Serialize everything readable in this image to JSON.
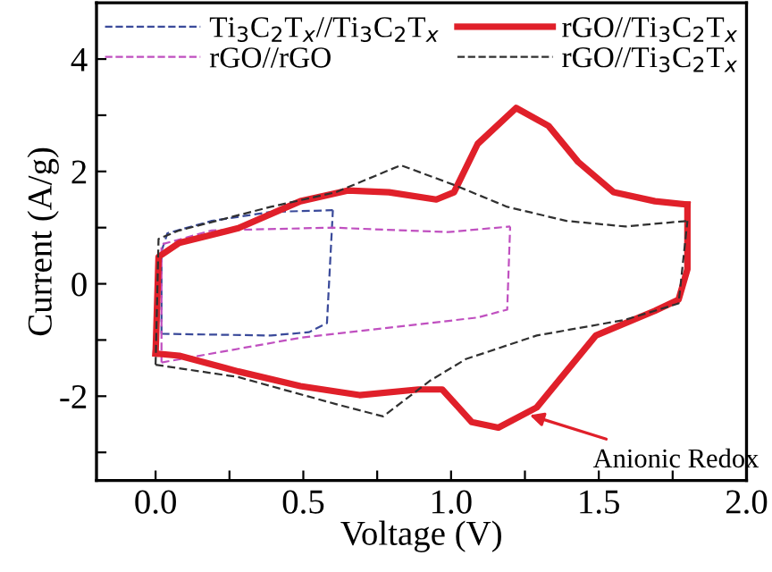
{
  "chart_data": {
    "type": "line",
    "xlabel": "Voltage (V)",
    "ylabel": "Current (A/g)",
    "xlim": [
      -0.2,
      2.0
    ],
    "ylim": [
      -3.5,
      5
    ],
    "xticks": [
      {
        "value": 0.0,
        "label": "0.0"
      },
      {
        "value": 0.25,
        "label": null
      },
      {
        "value": 0.5,
        "label": "0.5"
      },
      {
        "value": 0.75,
        "label": null
      },
      {
        "value": 1.0,
        "label": "1.0"
      },
      {
        "value": 1.25,
        "label": null
      },
      {
        "value": 1.5,
        "label": "1.5"
      },
      {
        "value": 1.75,
        "label": null
      },
      {
        "value": 2.0,
        "label": "2.0"
      }
    ],
    "yticks": [
      {
        "value": -3,
        "label": null
      },
      -2,
      {
        "value": -1,
        "label": null
      },
      0,
      {
        "value": 1,
        "label": null
      },
      2,
      {
        "value": 3,
        "label": null
      },
      4
    ],
    "grid": false,
    "legend": "top",
    "line_style": "dashed",
    "series": [
      {
        "name": "Ti$_{3}$C$_{2}$T$_{x}$//Ti$_{3}$C$_{2}$T$_{x}$",
        "color": "#3a4a9a",
        "x": [
          0.02,
          0.02,
          0.04,
          0.19,
          0.39,
          0.6
        ],
        "values": [
          -0.89,
          0.58,
          0.9,
          1.12,
          1.28,
          1.31
        ]
      },
      {
        "color": "#3a4a9a",
        "x": [
          0.02,
          0.39,
          0.52,
          0.58,
          0.6
        ],
        "values": [
          -0.89,
          -0.92,
          -0.86,
          -0.7,
          1.31
        ]
      },
      {
        "name": "rGO//rGO",
        "color": "#c050c0",
        "x": [
          0.02,
          0.02,
          0.19,
          0.6,
          0.99,
          1.2
        ],
        "values": [
          -1.4,
          0.7,
          0.95,
          1.0,
          0.92,
          1.02
        ]
      },
      {
        "color": "#c050c0",
        "x": [
          0.02,
          0.49,
          1.09,
          1.19,
          1.2
        ],
        "values": [
          -1.4,
          -0.96,
          -0.6,
          -0.46,
          1.02
        ]
      },
      {
        "name": "rGO//Ti$_{3}$C$_{2}$T$_{x}$",
        "color": "#e0202a",
        "line_style": "solid",
        "x": [
          0.0,
          0.01,
          0.08,
          0.28,
          0.49,
          0.65,
          0.79,
          0.95,
          1.01,
          1.09,
          1.22,
          1.33,
          1.43,
          1.55,
          1.69,
          1.8
        ],
        "values": [
          -1.24,
          0.48,
          0.73,
          0.99,
          1.47,
          1.66,
          1.63,
          1.5,
          1.63,
          2.49,
          3.13,
          2.81,
          2.17,
          1.63,
          1.47,
          1.41
        ]
      },
      {
        "color": "#e0202a",
        "line_style": "solid",
        "x": [
          0.0,
          0.08,
          0.28,
          0.49,
          0.69,
          0.89,
          0.97,
          1.07,
          1.16,
          1.29,
          1.49,
          1.69,
          1.77,
          1.8,
          1.8
        ],
        "values": [
          -1.24,
          -1.28,
          -1.56,
          -1.82,
          -1.98,
          -1.88,
          -1.88,
          -2.46,
          -2.56,
          -2.2,
          -0.92,
          -0.48,
          -0.28,
          0.26,
          1.41
        ]
      },
      {
        "name": "rGO//Ti$_{3}$C$_{2}$T$_{x}$",
        "color": "#303030",
        "x": [
          0.0,
          0.01,
          0.08,
          0.39,
          0.61,
          0.83,
          1.01,
          1.19,
          1.39,
          1.59,
          1.8
        ],
        "values": [
          -1.44,
          0.8,
          0.95,
          1.37,
          1.63,
          2.11,
          1.76,
          1.37,
          1.12,
          1.02,
          1.12
        ]
      },
      {
        "color": "#303030",
        "x": [
          0.0,
          0.28,
          0.61,
          0.77,
          0.93,
          1.05,
          1.29,
          1.59,
          1.77,
          1.8
        ],
        "values": [
          -1.44,
          -1.66,
          -2.14,
          -2.36,
          -1.72,
          -1.34,
          -0.92,
          -0.64,
          -0.35,
          1.12
        ]
      }
    ],
    "annotations": [
      {
        "text": "Anionic Redox",
        "x": 1.25,
        "y": -2.31
      }
    ]
  }
}
